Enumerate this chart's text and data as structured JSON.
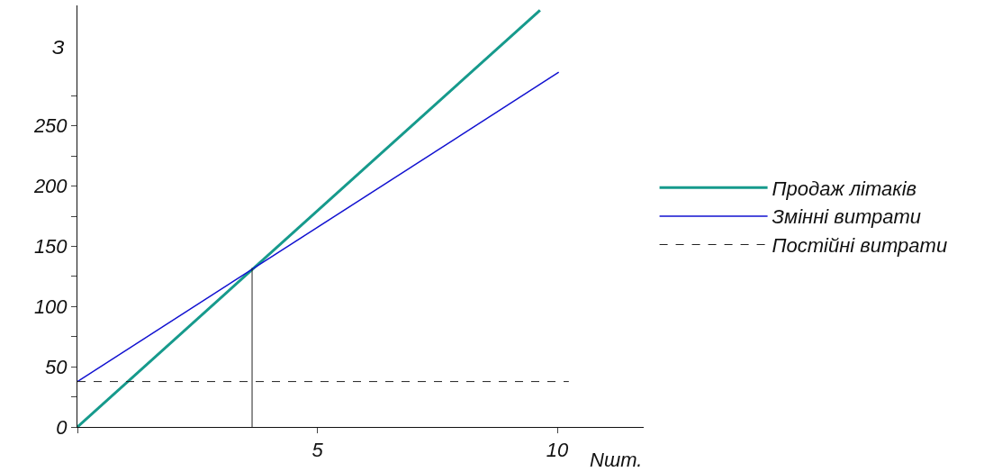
{
  "chart_data": {
    "type": "line",
    "xlabel": "Nшт.",
    "ylabel": "З",
    "xlim": [
      0,
      11.8
    ],
    "ylim": [
      0,
      350
    ],
    "xticks": [
      {
        "value": 0,
        "label": null
      },
      5,
      10
    ],
    "yticks": [
      0,
      {
        "value": 25,
        "label": null
      },
      50,
      {
        "value": 75,
        "label": null
      },
      100,
      {
        "value": 125,
        "label": null
      },
      150,
      {
        "value": 175,
        "label": null
      },
      200,
      {
        "value": 225,
        "label": null
      },
      250,
      {
        "value": 275,
        "label": null
      }
    ],
    "legend": "right",
    "series": [
      {
        "name": "Продаж літаків",
        "color": "#169a8c",
        "x": [
          0,
          9.64
        ],
        "values": [
          0,
          346
        ],
        "line_style": "solid"
      },
      {
        "name": "Змінні витрати",
        "color": "#1010d0",
        "x": [
          0,
          10.03
        ],
        "values": [
          37.7,
          294.5
        ],
        "line_style": "solid"
      },
      {
        "name": "Постійні витрати",
        "color": "#222222",
        "x": [
          0,
          10.24
        ],
        "values": [
          37.7,
          37.7
        ],
        "line_style": "dashed"
      },
      {
        "color": "#222222",
        "x": [
          3.64,
          3.64
        ],
        "values": [
          0,
          132
        ],
        "line_style": "solid"
      }
    ]
  }
}
